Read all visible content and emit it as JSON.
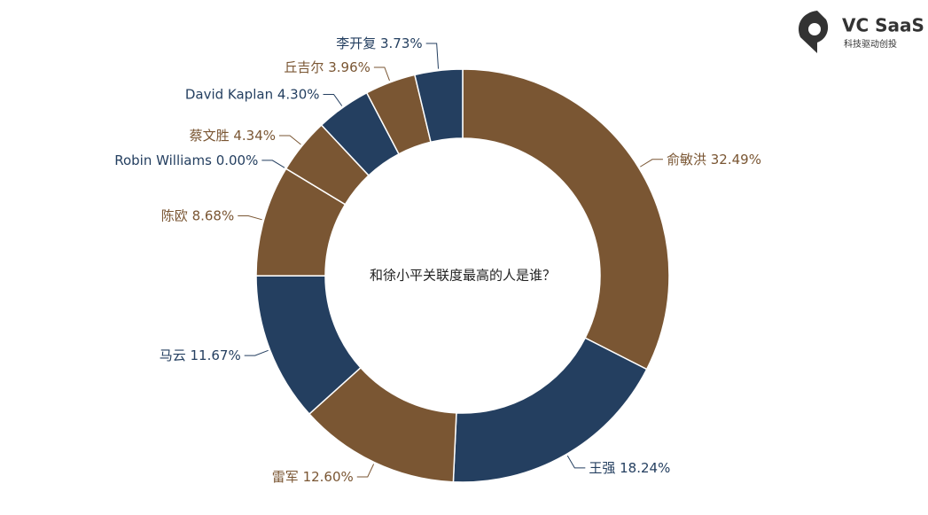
{
  "logo": {
    "name": "VC SaaS",
    "tagline": "科技驱动创投"
  },
  "chart_data": {
    "type": "donut",
    "title": "和徐小平关联度最高的人是谁？",
    "categories": [
      "俞敏洪",
      "王强",
      "雷军",
      "马云",
      "陈欧",
      "Robin Williams",
      "蔡文胜",
      "David Kaplan",
      "丘吉尔",
      "李开复"
    ],
    "values": [
      32.49,
      18.24,
      12.6,
      11.67,
      8.68,
      0.0,
      4.34,
      4.3,
      3.96,
      3.73
    ],
    "value_labels": [
      "32.49%",
      "18.24%",
      "12.60%",
      "11.67%",
      "8.68%",
      "0.00%",
      "4.34%",
      "4.30%",
      "3.96%",
      "3.73%"
    ],
    "colors": [
      "#7a5633",
      "#243f60"
    ]
  }
}
